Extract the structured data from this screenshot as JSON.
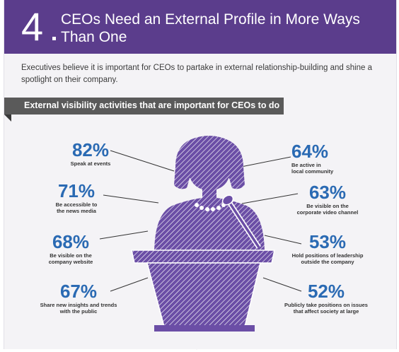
{
  "header": {
    "number": "4",
    "title": "CEOs Need an External Profile in More Ways Than One"
  },
  "intro": "Executives believe it is important for CEOs to partake in external relationship-building and shine a spotlight on their company.",
  "section_title": "External visibility activities that are important for CEOs to do",
  "stats": [
    {
      "percent": "82%",
      "value": 82,
      "label_lines": [
        "Speak at events"
      ]
    },
    {
      "percent": "71%",
      "value": 71,
      "label_lines": [
        "Be accessible to",
        "the news media"
      ]
    },
    {
      "percent": "68%",
      "value": 68,
      "label_lines": [
        "Be visible on the",
        "company website"
      ]
    },
    {
      "percent": "67%",
      "value": 67,
      "label_lines": [
        "Share new insights and trends",
        "with the public"
      ]
    },
    {
      "percent": "64%",
      "value": 64,
      "label_lines": [
        "Be active in",
        "local community"
      ]
    },
    {
      "percent": "63%",
      "value": 63,
      "label_lines": [
        "Be visible on the",
        "corporate video channel"
      ]
    },
    {
      "percent": "53%",
      "value": 53,
      "label_lines": [
        "Hold positions of leadership",
        "outside the company"
      ]
    },
    {
      "percent": "52%",
      "value": 52,
      "label_lines": [
        "Publicly take positions on issues",
        "that affect society at large"
      ]
    }
  ],
  "colors": {
    "header_bg": "#5b3d8c",
    "percent_text": "#2a6ab3",
    "figure": "#6b4ea6",
    "section_bar": "#5a5a5a"
  }
}
